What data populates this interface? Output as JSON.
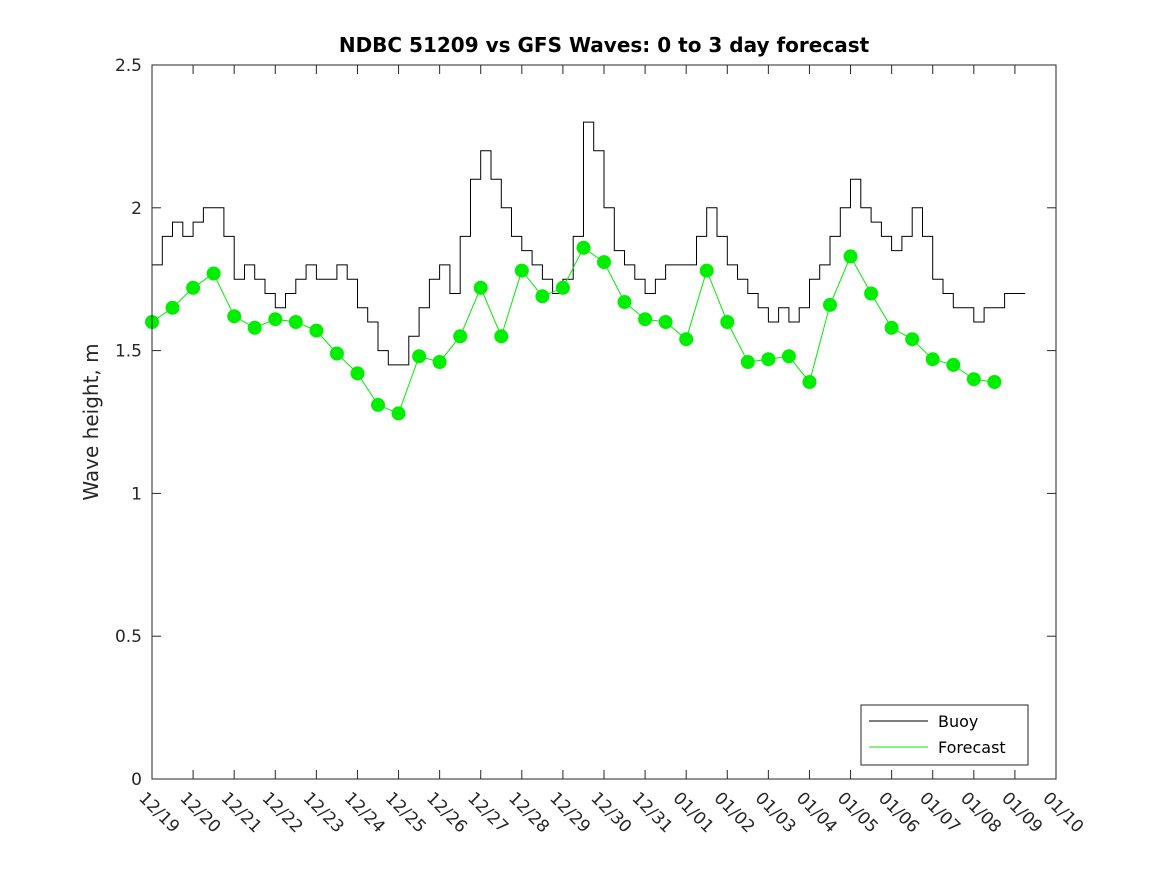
{
  "chart_data": {
    "type": "line",
    "title": "NDBC 51209 vs GFS Waves: 0 to 3 day forecast",
    "xlabel": "",
    "ylabel": "Wave height, m",
    "x_range_days": [
      0,
      22
    ],
    "ylim": [
      0,
      2.5
    ],
    "y_ticks": [
      0,
      0.5,
      1,
      1.5,
      2,
      2.5
    ],
    "y_tick_labels": [
      "0",
      "0.5",
      "1",
      "1.5",
      "2",
      "2.5"
    ],
    "x_tick_labels": [
      "12/19",
      "12/20",
      "12/21",
      "12/22",
      "12/23",
      "12/24",
      "12/25",
      "12/26",
      "12/27",
      "12/28",
      "12/29",
      "12/30",
      "12/31",
      "01/01",
      "01/02",
      "01/03",
      "01/04",
      "01/05",
      "01/06",
      "01/07",
      "01/08",
      "01/09",
      "01/10"
    ],
    "legend": {
      "placement": "bottom-right",
      "entries": [
        "Buoy",
        "Forecast"
      ]
    },
    "colors": {
      "buoy": "#000000",
      "forecast": "#00ee00",
      "axes": "#262626"
    },
    "series": [
      {
        "name": "Buoy",
        "x_days": [
          0,
          0.25,
          0.5,
          0.75,
          1,
          1.25,
          1.5,
          1.75,
          2,
          2.25,
          2.5,
          2.75,
          3,
          3.25,
          3.5,
          3.75,
          4,
          4.25,
          4.5,
          4.75,
          5,
          5.25,
          5.5,
          5.75,
          6,
          6.25,
          6.5,
          6.75,
          7,
          7.25,
          7.5,
          7.75,
          8,
          8.25,
          8.5,
          8.75,
          9,
          9.25,
          9.5,
          9.75,
          10,
          10.25,
          10.5,
          10.75,
          11,
          11.25,
          11.5,
          11.75,
          12,
          12.25,
          12.5,
          12.75,
          13,
          13.25,
          13.5,
          13.75,
          14,
          14.25,
          14.5,
          14.75,
          15,
          15.25,
          15.5,
          15.75,
          16,
          16.25,
          16.5,
          16.75,
          17,
          17.25,
          17.5,
          17.75,
          18,
          18.25,
          18.5,
          18.75,
          19,
          19.25,
          19.5,
          19.75,
          20,
          20.25,
          20.5,
          20.75,
          21,
          21.25
        ],
        "values": [
          1.8,
          1.9,
          1.95,
          1.9,
          1.95,
          2.0,
          2.0,
          1.9,
          1.75,
          1.8,
          1.75,
          1.7,
          1.65,
          1.7,
          1.75,
          1.8,
          1.75,
          1.75,
          1.8,
          1.75,
          1.65,
          1.6,
          1.5,
          1.45,
          1.45,
          1.55,
          1.65,
          1.75,
          1.8,
          1.7,
          1.9,
          2.1,
          2.2,
          2.1,
          2.0,
          1.9,
          1.85,
          1.8,
          1.75,
          1.7,
          1.75,
          1.9,
          2.3,
          2.2,
          2.0,
          1.85,
          1.8,
          1.75,
          1.7,
          1.75,
          1.8,
          1.8,
          1.8,
          1.9,
          2.0,
          1.9,
          1.8,
          1.75,
          1.7,
          1.65,
          1.6,
          1.65,
          1.6,
          1.65,
          1.75,
          1.8,
          1.9,
          2.0,
          2.1,
          2.0,
          1.95,
          1.9,
          1.85,
          1.9,
          2.0,
          1.9,
          1.75,
          1.7,
          1.65,
          1.65,
          1.6,
          1.65,
          1.65,
          1.7,
          1.7,
          1.7
        ]
      },
      {
        "name": "Forecast",
        "marker": "circle",
        "x_days": [
          0,
          0.5,
          1,
          1.5,
          2,
          2.5,
          3,
          3.5,
          4,
          4.5,
          5,
          5.5,
          6,
          6.5,
          7,
          7.5,
          8,
          8.5,
          9,
          9.5,
          10,
          10.5,
          11,
          11.5,
          12,
          12.5,
          13,
          13.5,
          14,
          14.5,
          15,
          15.5,
          16,
          16.5,
          17,
          17.5,
          18,
          18.5,
          19,
          19.5,
          20,
          20.5
        ],
        "values": [
          1.6,
          1.65,
          1.72,
          1.77,
          1.62,
          1.58,
          1.61,
          1.6,
          1.57,
          1.49,
          1.42,
          1.31,
          1.28,
          1.48,
          1.46,
          1.55,
          1.72,
          1.55,
          1.78,
          1.69,
          1.72,
          1.86,
          1.81,
          1.67,
          1.61,
          1.6,
          1.54,
          1.78,
          1.6,
          1.46,
          1.47,
          1.48,
          1.39,
          1.66,
          1.83,
          1.7,
          1.58,
          1.54,
          1.47,
          1.45,
          1.4,
          1.39
        ]
      }
    ]
  }
}
